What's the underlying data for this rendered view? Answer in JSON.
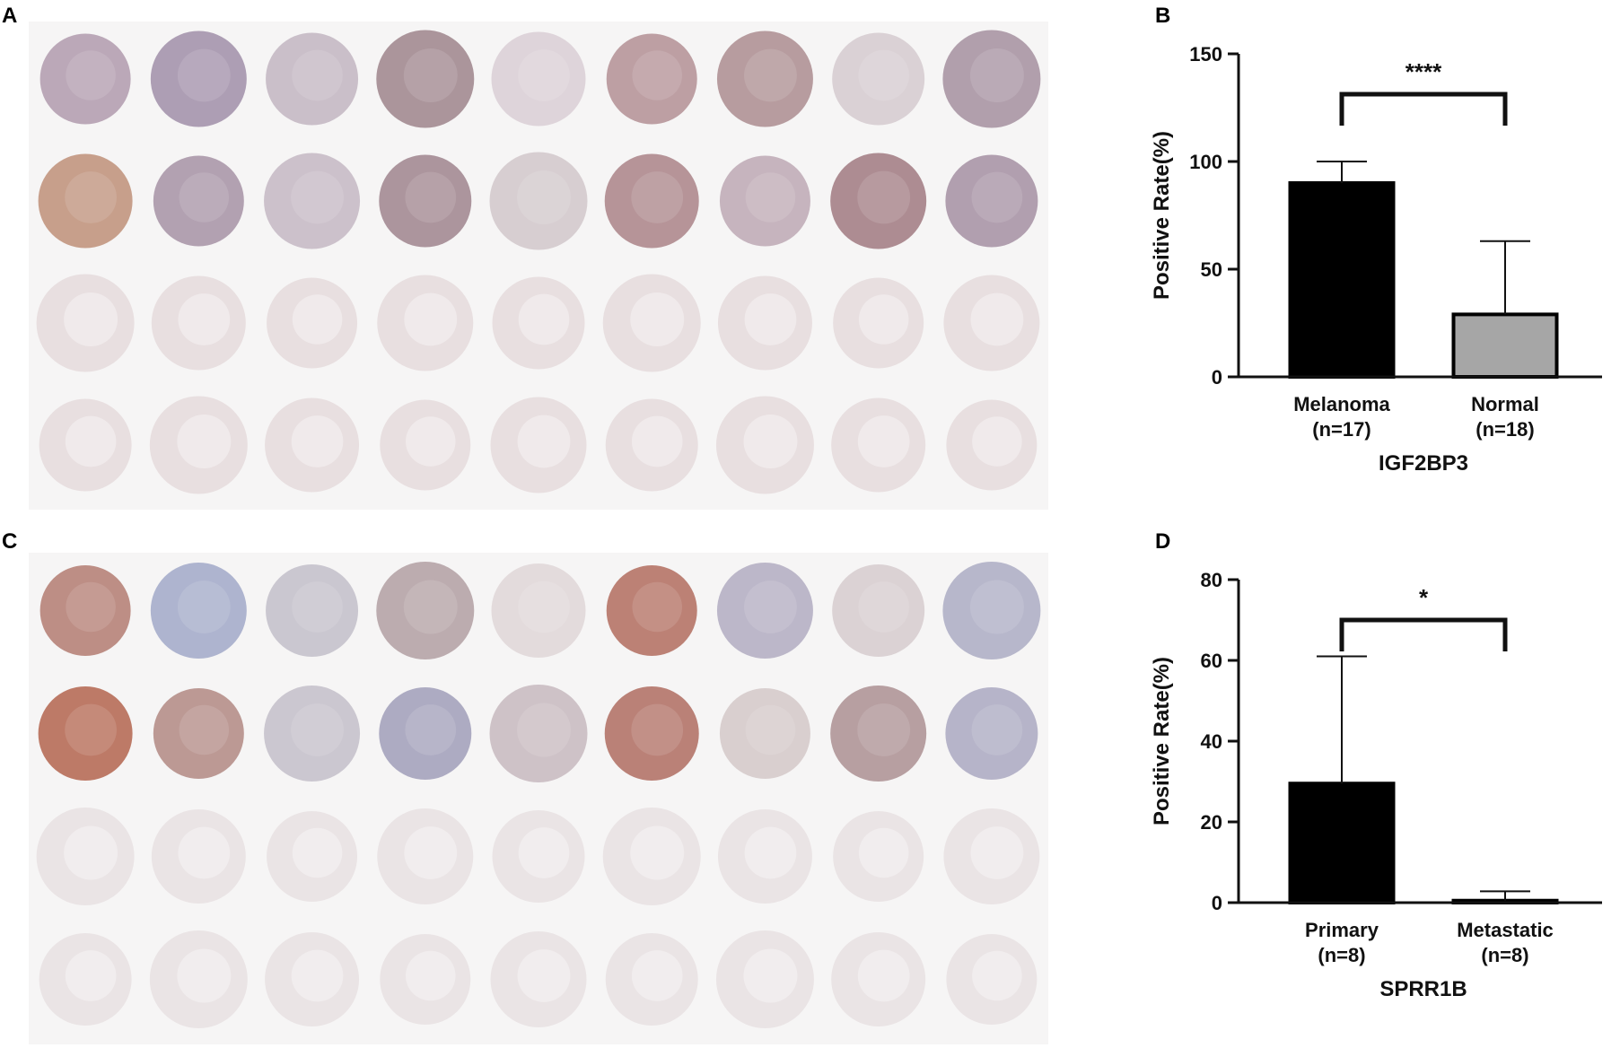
{
  "panels": {
    "a": "A",
    "b": "B",
    "c": "C",
    "d": "D"
  },
  "tma_palette": {
    "a": {
      "strong": [
        "#b7a3b4",
        "#a999b0",
        "#c7bcc6",
        "#a78f96",
        "#dcd2d8",
        "#b99a9e",
        "#b3979a",
        "#d8cfd3",
        "#ad9aa8",
        "#c49a85",
        "#ae9cad",
        "#c9bec8",
        "#a88f98",
        "#d5cbcf",
        "#b28e92",
        "#c3b0bb",
        "#a9868c",
        "#ad9aab"
      ],
      "weak": "#e8dfe0"
    },
    "c": {
      "strong": [
        "#b9887e",
        "#aab0cc",
        "#c7c4cd",
        "#b8a8ab",
        "#e2d9da",
        "#b87a6e",
        "#b8b3c6",
        "#d9d0d2",
        "#b3b3c8",
        "#b9735f",
        "#b8938e",
        "#c8c4cd",
        "#a9a6bf",
        "#cbbfc4",
        "#b67a70",
        "#d7cccc",
        "#b39a9c",
        "#b2b0c6"
      ],
      "weak": "#eae4e5"
    }
  },
  "chart_data": [
    {
      "type": "bar",
      "panel": "B",
      "categories": [
        "Melanoma",
        "Normal"
      ],
      "category_sublabels": [
        "(n=17)",
        "(n=18)"
      ],
      "values": [
        90,
        29
      ],
      "error_upper": [
        100,
        63
      ],
      "bar_colors": [
        "#000000",
        "#a6a6a6"
      ],
      "xlabel": "IGF2BP3",
      "ylabel": "Positive Rate(%)",
      "ylim": [
        0,
        150
      ],
      "yticks": [
        0,
        50,
        100,
        150
      ],
      "significance": "****"
    },
    {
      "type": "bar",
      "panel": "D",
      "categories": [
        "Primary",
        "Metastatic"
      ],
      "category_sublabels": [
        "(n=8)",
        "(n=8)"
      ],
      "values": [
        29.5,
        0.5
      ],
      "error_upper": [
        61,
        2.8
      ],
      "bar_colors": [
        "#000000",
        "#000000"
      ],
      "xlabel": "SPRR1B",
      "ylabel": "Positive Rate(%)",
      "ylim": [
        0,
        80
      ],
      "yticks": [
        0,
        20,
        40,
        60,
        80
      ],
      "significance": "*"
    }
  ]
}
